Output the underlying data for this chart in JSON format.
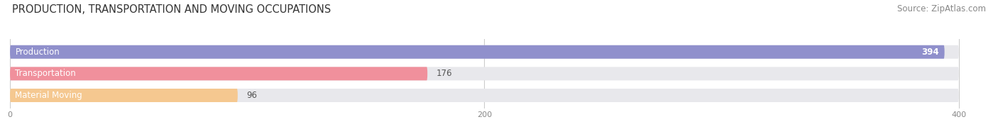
{
  "title": "PRODUCTION, TRANSPORTATION AND MOVING OCCUPATIONS",
  "source_text": "Source: ZipAtlas.com",
  "categories": [
    "Production",
    "Transportation",
    "Material Moving"
  ],
  "values": [
    394,
    176,
    96
  ],
  "bar_colors": [
    "#9090cc",
    "#f0909c",
    "#f5c890"
  ],
  "bar_bg_color": "#e8e8ec",
  "xlim": [
    0,
    430
  ],
  "x_max_bar": 415,
  "xticks": [
    0,
    200,
    400
  ],
  "title_fontsize": 10.5,
  "source_fontsize": 8.5,
  "label_fontsize": 8.5,
  "value_fontsize": 8.5,
  "background_color": "#ffffff",
  "bar_height": 0.62,
  "label_color_inside": "#333333",
  "value_color_394": "#ffffff",
  "value_color_other": "#666666"
}
